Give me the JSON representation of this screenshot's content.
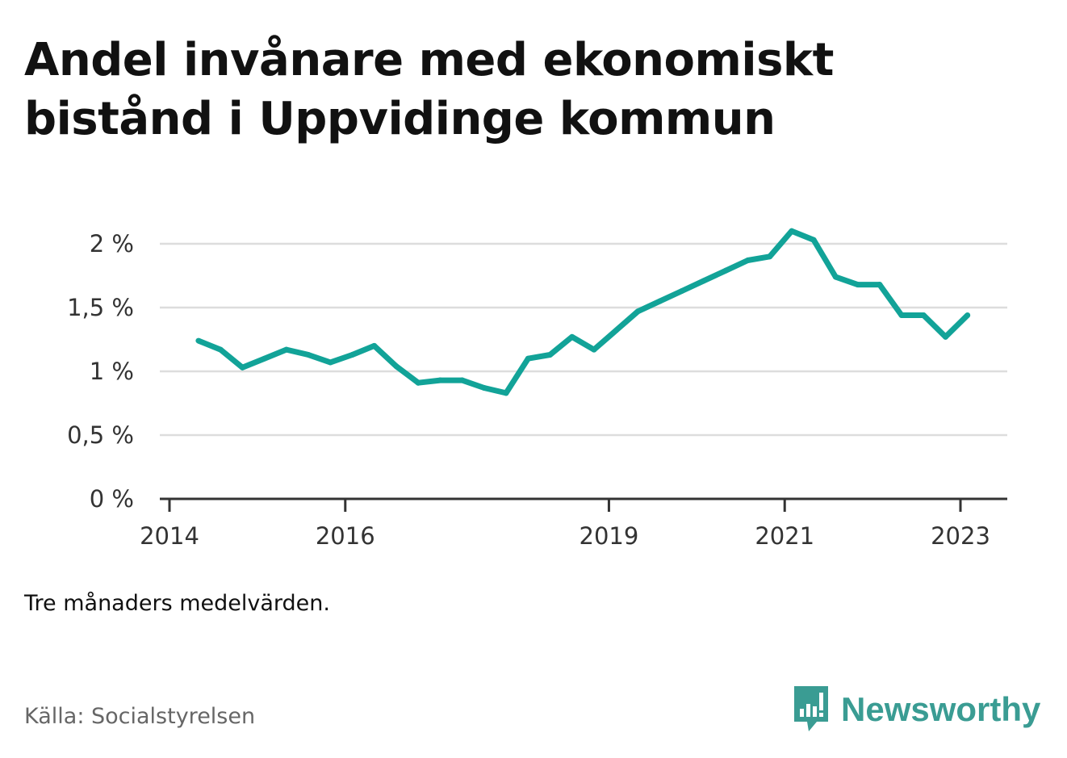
{
  "title": "Andel invånare med ekonomiskt bistånd i Uppvidinge kommun",
  "note": "Tre månaders medelvärden.",
  "source": "Källa: Socialstyrelsen",
  "brand": {
    "name": "Newsworthy",
    "icon": "newsworthy-logo-icon",
    "color": "#3a9c93"
  },
  "chart_data": {
    "type": "line",
    "line_color": "#12a398",
    "grid": true,
    "ylim": [
      0,
      2.2
    ],
    "yticks": [
      0,
      0.5,
      1,
      1.5,
      2
    ],
    "ytick_labels": [
      "0 %",
      "0,5 %",
      "1 %",
      "1,5 %",
      "2 %"
    ],
    "xticks": [
      2014,
      2016,
      2019,
      2021,
      2023
    ],
    "xtick_labels": [
      "2014",
      "2016",
      "2019",
      "2021",
      "2023"
    ],
    "xlim": [
      2014.0,
      2023.5
    ],
    "series": [
      {
        "x": [
          2014.33,
          2014.58,
          2014.83,
          2015.08,
          2015.33,
          2015.58,
          2015.83,
          2016.08,
          2016.33,
          2016.58,
          2016.83,
          2017.08,
          2017.33,
          2017.58,
          2017.83,
          2018.08,
          2018.33,
          2018.58,
          2018.83,
          2019.08,
          2019.33,
          2019.58,
          2019.83,
          2020.08,
          2020.33,
          2020.58,
          2020.83,
          2021.08,
          2021.33,
          2021.58,
          2021.83,
          2022.08,
          2022.33,
          2022.58,
          2022.83,
          2023.08
        ],
        "values": [
          1.24,
          1.17,
          1.03,
          1.1,
          1.17,
          1.13,
          1.07,
          1.13,
          1.2,
          1.04,
          0.91,
          0.93,
          0.93,
          0.87,
          0.83,
          1.1,
          1.13,
          1.27,
          1.17,
          1.32,
          1.47,
          1.55,
          1.63,
          1.71,
          1.79,
          1.87,
          1.9,
          2.1,
          2.03,
          1.74,
          1.68,
          1.68,
          1.44,
          1.44,
          1.27,
          1.44
        ]
      }
    ]
  }
}
